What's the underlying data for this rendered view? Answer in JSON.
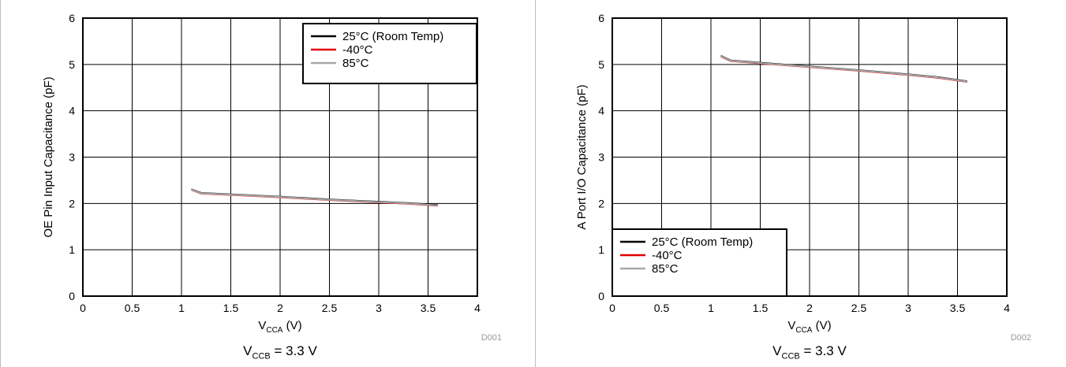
{
  "chart_data": [
    {
      "type": "line",
      "code": "D001",
      "ylabel": "OE Pin Input Capacitance (pF)",
      "xlabel_main": "V",
      "xlabel_sub": "CCA",
      "xlabel_unit": " (V)",
      "caption_main": "V",
      "caption_sub": "CCB",
      "caption_rest": " = 3.3 V",
      "xlim": [
        0,
        4
      ],
      "ylim": [
        0,
        6
      ],
      "x_ticks": [
        "0",
        "0.5",
        "1",
        "1.5",
        "2",
        "2.5",
        "3",
        "3.5",
        "4"
      ],
      "y_ticks": [
        "0",
        "1",
        "2",
        "3",
        "4",
        "5",
        "6"
      ],
      "grid": true,
      "legend_position": "top-right",
      "series": [
        {
          "name": "25°C (Room Temp)",
          "color": "#000000",
          "x": [
            1.1,
            1.2,
            1.5,
            2.0,
            2.5,
            3.0,
            3.3,
            3.6
          ],
          "y": [
            2.3,
            2.22,
            2.19,
            2.14,
            2.08,
            2.03,
            2.0,
            1.96
          ]
        },
        {
          "name": "-40°C",
          "color": "#e00000",
          "x": [
            1.1,
            1.2,
            1.5,
            2.0,
            2.5,
            3.0,
            3.3,
            3.6
          ],
          "y": [
            2.3,
            2.22,
            2.19,
            2.14,
            2.08,
            2.03,
            2.0,
            1.96
          ]
        },
        {
          "name": "85°C",
          "color": "#a8a8a8",
          "x": [
            1.1,
            1.2,
            1.5,
            2.0,
            2.5,
            3.0,
            3.3,
            3.6
          ],
          "y": [
            2.3,
            2.22,
            2.19,
            2.14,
            2.08,
            2.03,
            2.0,
            1.96
          ]
        }
      ]
    },
    {
      "type": "line",
      "code": "D002",
      "ylabel": "A Port I/O Capacitance (pF)",
      "xlabel_main": "V",
      "xlabel_sub": "CCA",
      "xlabel_unit": " (V)",
      "caption_main": "V",
      "caption_sub": "CCB",
      "caption_rest": " = 3.3 V",
      "xlim": [
        0,
        4
      ],
      "ylim": [
        0,
        6
      ],
      "x_ticks": [
        "0",
        "0.5",
        "1",
        "1.5",
        "2",
        "2.5",
        "3",
        "3.5",
        "4"
      ],
      "y_ticks": [
        "0",
        "1",
        "2",
        "3",
        "4",
        "5",
        "6"
      ],
      "grid": true,
      "legend_position": "bottom-left",
      "series": [
        {
          "name": "25°C (Room Temp)",
          "color": "#000000",
          "x": [
            1.1,
            1.2,
            1.5,
            2.0,
            2.5,
            3.0,
            3.3,
            3.6
          ],
          "y": [
            5.18,
            5.08,
            5.03,
            4.95,
            4.87,
            4.78,
            4.72,
            4.63
          ]
        },
        {
          "name": "-40°C",
          "color": "#e00000",
          "x": [
            1.1,
            1.2,
            1.5,
            2.0,
            2.5,
            3.0,
            3.3,
            3.6
          ],
          "y": [
            5.18,
            5.08,
            5.03,
            4.95,
            4.87,
            4.78,
            4.72,
            4.63
          ]
        },
        {
          "name": "85°C",
          "color": "#a8a8a8",
          "x": [
            1.1,
            1.2,
            1.5,
            2.0,
            2.5,
            3.0,
            3.3,
            3.6
          ],
          "y": [
            5.18,
            5.08,
            5.03,
            4.95,
            4.87,
            4.78,
            4.72,
            4.63
          ]
        }
      ]
    }
  ]
}
